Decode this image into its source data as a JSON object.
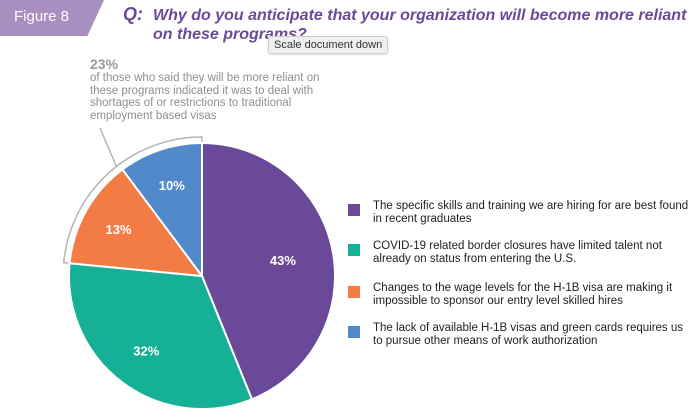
{
  "figure_label": "Figure 8",
  "question_mark": "Q:",
  "question": "Why do you anticipate that your organization will become more reliant on these programs?",
  "tooltip": "Scale document down",
  "annotation": {
    "percent": "23%",
    "text": "of those who said they will be more reliant on these programs indicated it was to deal with shortages of or restrictions to traditional employment based visas"
  },
  "colors": {
    "accent": "#6a4a98",
    "figure_tab": "#a98ec0",
    "purple": "#6a4a98",
    "teal": "#16b096",
    "orange": "#f27c43",
    "blue": "#5189c9"
  },
  "chart_data": {
    "type": "pie",
    "title": "Why do you anticipate that your organization will become more reliant on these programs?",
    "slices": [
      {
        "label": "The specific skills and training we are hiring for are best found in recent graduates",
        "value": 43,
        "display": "43%",
        "color": "#6a4a98"
      },
      {
        "label": "COVID-19 related border closures have limited talent not already on status from entering the U.S.",
        "value": 32,
        "display": "32%",
        "color": "#16b096"
      },
      {
        "label": "Changes to the wage levels for the H-1B visa are making it impossible to sponsor our entry level skilled hires",
        "value": 13,
        "display": "13%",
        "color": "#f27c43"
      },
      {
        "label": "The lack of available H-1B visas and green cards requires us to pursue other means of work authorization",
        "value": 10,
        "display": "10%",
        "color": "#5189c9"
      }
    ],
    "start_angle": "12 o'clock",
    "direction": "clockwise",
    "legend_position": "right"
  }
}
